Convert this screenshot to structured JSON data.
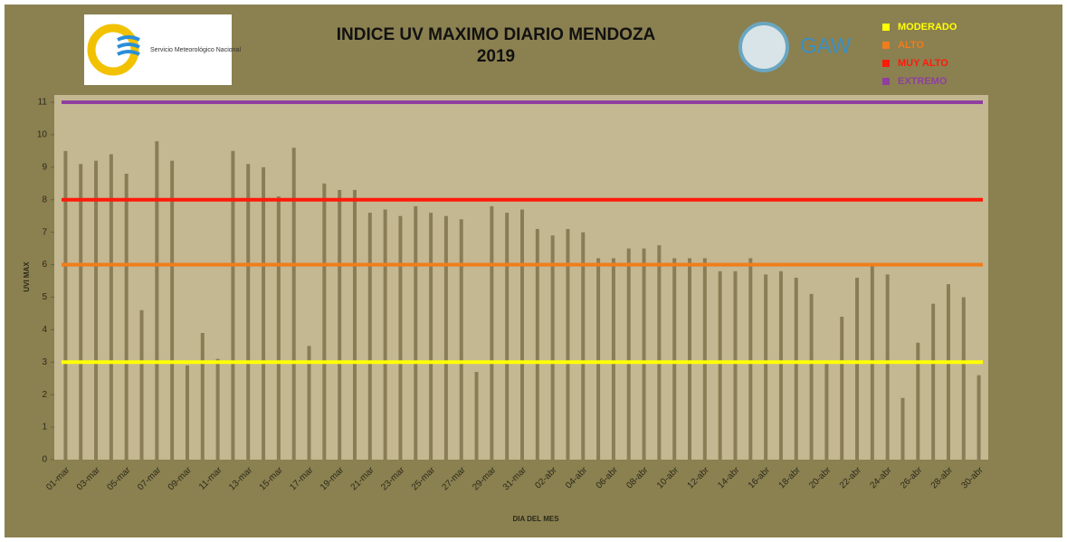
{
  "chart_data": {
    "type": "bar",
    "title": "INDICE UV MAXIMO DIARIO MENDOZA",
    "subtitle": "2019",
    "x_label": "DIA DEL MES",
    "y_label": "UVI MAX",
    "categories": [
      "01-mar",
      null,
      "03-mar",
      null,
      "05-mar",
      null,
      "07-mar",
      null,
      "09-mar",
      null,
      "11-mar",
      null,
      "13-mar",
      null,
      "15-mar",
      null,
      "17-mar",
      null,
      "19-mar",
      null,
      "21-mar",
      null,
      "23-mar",
      null,
      "25-mar",
      null,
      "27-mar",
      null,
      "29-mar",
      null,
      "31-mar",
      null,
      "02-abr",
      null,
      "04-abr",
      null,
      "06-abr",
      null,
      "08-abr",
      null,
      "10-abr",
      null,
      "12-abr",
      null,
      "14-abr",
      null,
      "16-abr",
      null,
      "18-abr",
      null,
      "20-abr",
      null,
      "22-abr",
      null,
      "24-abr",
      null,
      "26-abr",
      null,
      "28-abr",
      null,
      "30-abr"
    ],
    "values": [
      9.5,
      9.1,
      9.2,
      9.4,
      8.8,
      4.6,
      9.8,
      9.2,
      2.9,
      3.9,
      3.1,
      9.5,
      9.1,
      9.0,
      8.1,
      9.6,
      3.5,
      8.5,
      8.3,
      8.3,
      7.6,
      7.7,
      7.5,
      7.8,
      7.6,
      7.5,
      7.4,
      2.7,
      7.8,
      7.6,
      7.7,
      7.1,
      6.9,
      7.1,
      7.0,
      6.2,
      6.2,
      6.5,
      6.5,
      6.6,
      6.2,
      6.2,
      6.2,
      5.8,
      5.8,
      6.2,
      5.7,
      5.8,
      5.6,
      5.1,
      3.0,
      4.4,
      5.6,
      6.0,
      5.7,
      1.9,
      3.6,
      4.8,
      5.4,
      5.0,
      2.6
    ],
    "color": "#8a7d55",
    "ylim": [
      0,
      11
    ],
    "yticks": [
      0,
      1,
      2,
      3,
      4,
      5,
      6,
      7,
      8,
      9,
      10,
      11
    ],
    "thresholds": [
      {
        "name": "MODERADO",
        "value": 3,
        "color": "#ffff00"
      },
      {
        "name": "ALTO",
        "value": 6,
        "color": "#f07d1a"
      },
      {
        "name": "MUY ALTO",
        "value": 8,
        "color": "#ff1a0a"
      },
      {
        "name": "EXTREMO",
        "value": 11,
        "color": "#8e3fa0"
      }
    ]
  },
  "logos": {
    "smn": "Servicio Meteorológico Nacional",
    "gaw": "GAW"
  }
}
